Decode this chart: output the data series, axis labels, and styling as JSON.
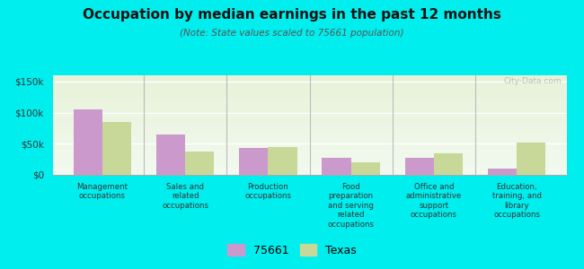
{
  "title": "Occupation by median earnings in the past 12 months",
  "subtitle": "(Note: State values scaled to 75661 population)",
  "categories": [
    "Management\noccupations",
    "Sales and\nrelated\noccupations",
    "Production\noccupations",
    "Food\npreparation\nand serving\nrelated\noccupations",
    "Office and\nadministrative\nsupport\noccupations",
    "Education,\ntraining, and\nlibrary\noccupations"
  ],
  "values_75661": [
    105000,
    65000,
    43000,
    27000,
    27000,
    10000
  ],
  "values_texas": [
    85000,
    37000,
    45000,
    20000,
    35000,
    52000
  ],
  "color_75661": "#cc99cc",
  "color_texas": "#c8d898",
  "background_color": "#00eeee",
  "ylabel_ticks": [
    0,
    50000,
    100000,
    150000
  ],
  "ylabel_labels": [
    "$0",
    "$50k",
    "$100k",
    "$150k"
  ],
  "ylim": [
    0,
    160000
  ],
  "bar_width": 0.35,
  "legend_label_75661": "75661",
  "legend_label_texas": "Texas",
  "watermark": "City-Data.com"
}
